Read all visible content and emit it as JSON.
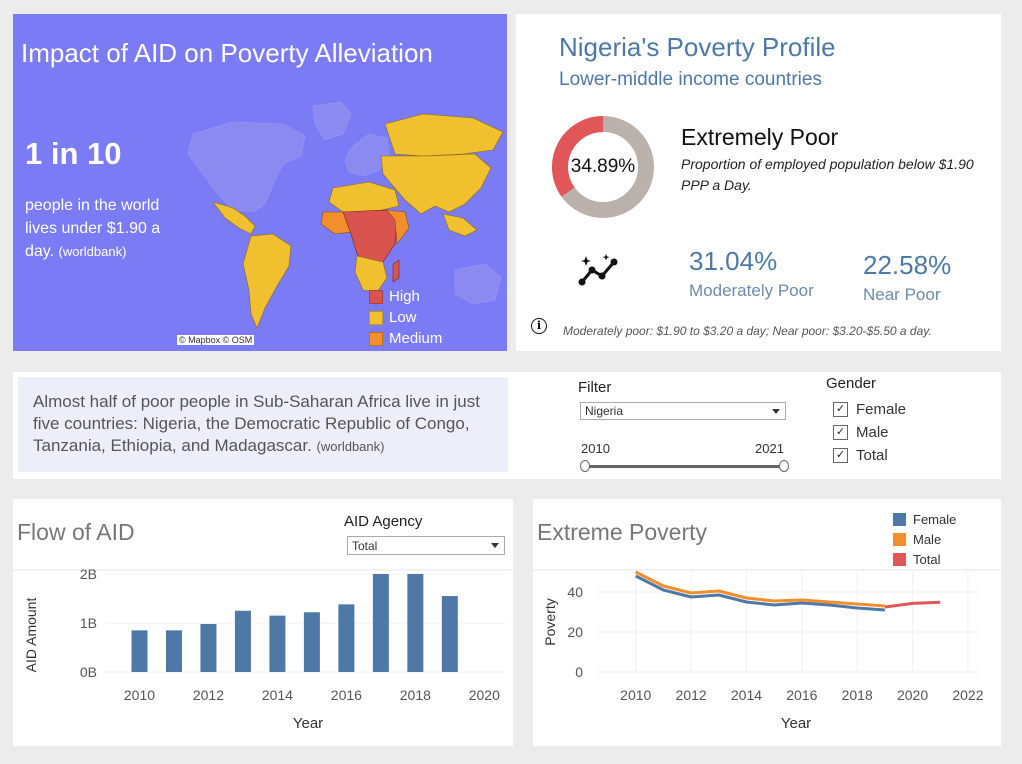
{
  "map_panel": {
    "title": "Impact of AID on Poverty Alleviation",
    "headline": "1 in 10",
    "description": "people in the world lives under $1.90 a day.",
    "source": "(worldbank)",
    "attribution": "© Mapbox © OSM",
    "legend": [
      {
        "label": "High",
        "color": "#d9534f"
      },
      {
        "label": "Low",
        "color": "#f0c02f"
      },
      {
        "label": "Medium",
        "color": "#f28e2b"
      }
    ]
  },
  "profile": {
    "title": "Nigeria's Poverty Profile",
    "subtitle": "Lower-middle income countries",
    "extreme_value": "34.89%",
    "extreme_fraction": 0.3489,
    "extreme_title": "Extremely Poor",
    "extreme_desc": "Proportion of employed population below $1.90 PPP a Day.",
    "moderate_value": "31.04%",
    "moderate_label": "Moderately Poor",
    "near_value": "22.58%",
    "near_label": "Near Poor",
    "info_symbol": "i",
    "note": "Moderately poor: $1.90 to $3.20 a day; Near poor: $3.20-$5.50 a day.",
    "colors": {
      "accent": "#4e79a7",
      "donut_fill": "#e15759",
      "donut_rest": "#bab0ac"
    }
  },
  "filters": {
    "africa_text": "Almost half of poor people in Sub-Saharan Africa live in just five countries: Nigeria, the Democratic Republic of Congo, Tanzania, Ethiopia, and Madagascar.",
    "africa_source": "(worldbank)",
    "filter_label": "Filter",
    "country_value": "Nigeria",
    "year_min": "2010",
    "year_max": "2021",
    "gender_label": "Gender",
    "gender_options": [
      {
        "label": "Female",
        "checked": true
      },
      {
        "label": "Male",
        "checked": true
      },
      {
        "label": "Total",
        "checked": true
      }
    ],
    "check_glyph": "✓"
  },
  "aid_panel": {
    "title": "Flow of AID",
    "agency_label": "AID Agency",
    "agency_value": "Total"
  },
  "poverty_panel": {
    "title": "Extreme Poverty",
    "legend": [
      {
        "label": "Female",
        "color": "#4e79a7"
      },
      {
        "label": "Male",
        "color": "#f28e2b"
      },
      {
        "label": "Total",
        "color": "#e15759"
      }
    ]
  },
  "chart_data": [
    {
      "type": "bar",
      "title": "Flow of AID",
      "xlabel": "Year",
      "ylabel": "AID Amount",
      "x": [
        2010,
        2011,
        2012,
        2013,
        2014,
        2015,
        2016,
        2017,
        2018,
        2019
      ],
      "values": [
        0.85,
        0.85,
        0.98,
        1.25,
        1.15,
        1.22,
        1.38,
        2.0,
        2.0,
        1.55
      ],
      "x_ticks": [
        "2010",
        "2012",
        "2014",
        "2016",
        "2018",
        "2020"
      ],
      "y_ticks": [
        "0B",
        "1B",
        "2B"
      ],
      "ylim": [
        0,
        2.0
      ],
      "color": "#4e79a7"
    },
    {
      "type": "line",
      "title": "Extreme Poverty",
      "xlabel": "Year",
      "ylabel": "Poverty",
      "x_ticks": [
        "2010",
        "2012",
        "2014",
        "2016",
        "2018",
        "2020",
        "2022"
      ],
      "y_ticks": [
        "0",
        "20",
        "40"
      ],
      "ylim": [
        0,
        50
      ],
      "series": [
        {
          "name": "Female",
          "color": "#4e79a7",
          "x": [
            2010,
            2011,
            2012,
            2013,
            2014,
            2015,
            2016,
            2017,
            2018,
            2019
          ],
          "values": [
            48,
            41,
            37.5,
            38.5,
            35,
            33.5,
            34.5,
            33.5,
            32,
            31
          ]
        },
        {
          "name": "Male",
          "color": "#f28e2b",
          "x": [
            2010,
            2011,
            2012,
            2013,
            2014,
            2015,
            2016,
            2017,
            2018,
            2019
          ],
          "values": [
            50,
            43,
            39.5,
            40.5,
            37,
            35.5,
            36,
            35,
            34,
            33
          ]
        },
        {
          "name": "Total",
          "color": "#e15759",
          "x": [
            2019,
            2020,
            2021
          ],
          "values": [
            32.5,
            34.3,
            34.9
          ]
        }
      ]
    }
  ]
}
